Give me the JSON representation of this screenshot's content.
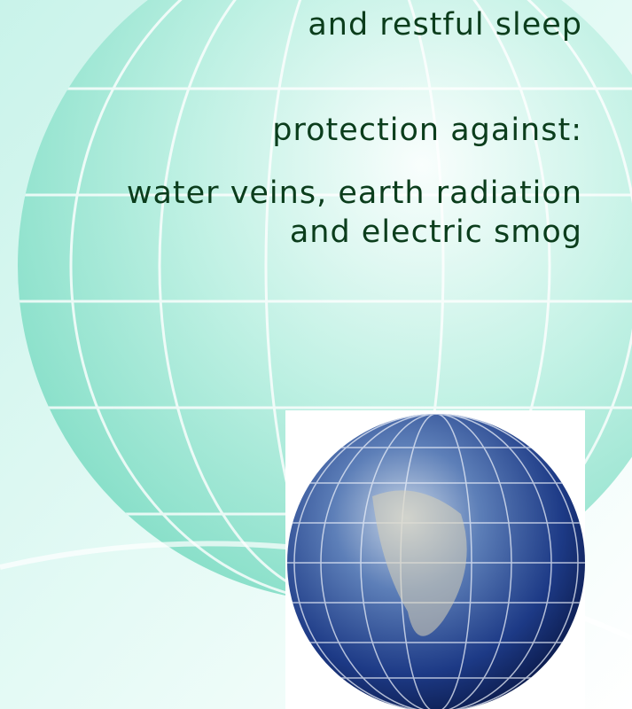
{
  "text": {
    "intro": "and restful sleep",
    "heading": "protection against:",
    "items": [
      "water veins, earth radiation",
      "and electric smog"
    ]
  }
}
